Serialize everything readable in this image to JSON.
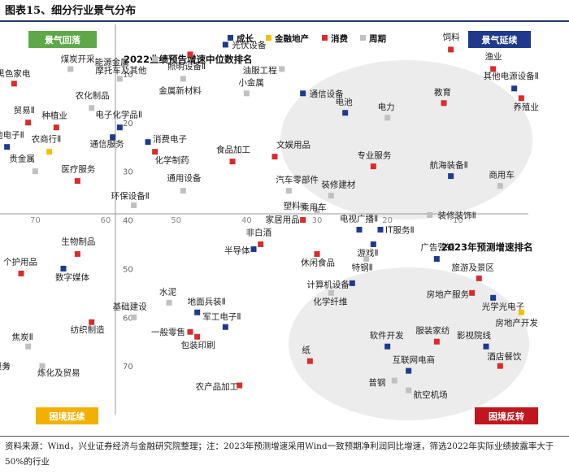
{
  "figure": {
    "title": "图表15、细分行业景气分布"
  },
  "footer": {
    "note": "资料来源：Wind，兴业证券经济与金融研究院整理；注：2023年预测增速采用Wind一致预期净利润同比增速，筛选2022年实际业绩披露率大于50%的行业"
  },
  "chart_data": {
    "type": "scatter",
    "xlabel": "2022业绩预告增速中位数排名",
    "ylabel": "2023年预测增速排名",
    "xlim": [
      75,
      0
    ],
    "ylim": [
      80,
      0
    ],
    "x_ticks": [
      70,
      60,
      50,
      40,
      30,
      20,
      10
    ],
    "y_ticks": [
      10,
      20,
      30,
      40,
      50,
      60,
      70
    ],
    "quadrant_labels": {
      "top_left": "景气回落",
      "top_right": "景气延续",
      "bottom_left": "困境延续",
      "bottom_right": "困境反转"
    },
    "colors": {
      "成长": "#1f3a8c",
      "金融地产": "#f2c200",
      "消费": "#d92b2b",
      "周期": "#c0c0c0",
      "green_box": "#5fa84a",
      "navy_box": "#1f3a8c",
      "yellow_box": "#f2b100",
      "red_box": "#c0161e"
    },
    "legend": [
      "成长",
      "金融地产",
      "消费",
      "周期"
    ],
    "points": [
      {
        "name": "黑色家电",
        "cat": "消费",
        "x": 73,
        "y": 12
      },
      {
        "name": "煤炭开采",
        "cat": "周期",
        "x": 65,
        "y": 9
      },
      {
        "name": "摩托车及其他",
        "cat": "周期",
        "x": 58,
        "y": 11
      },
      {
        "name": "能源金属",
        "cat": "周期",
        "x": 53,
        "y": 7
      },
      {
        "name": "照明设备Ⅱ",
        "cat": "消费",
        "x": 48,
        "y": 6
      },
      {
        "name": "光伏设备",
        "cat": "成长",
        "x": 43,
        "y": 4
      },
      {
        "name": "油服工程",
        "cat": "周期",
        "x": 35,
        "y": 9
      },
      {
        "name": "金属新材料",
        "cat": "周期",
        "x": 49,
        "y": 11
      },
      {
        "name": "小金属",
        "cat": "周期",
        "x": 40,
        "y": 14
      },
      {
        "name": "通信设备",
        "cat": "成长",
        "x": 32,
        "y": 14
      },
      {
        "name": "电池",
        "cat": "成长",
        "x": 26,
        "y": 18
      },
      {
        "name": "电力",
        "cat": "周期",
        "x": 20,
        "y": 19
      },
      {
        "name": "饲料",
        "cat": "消费",
        "x": 11,
        "y": 5
      },
      {
        "name": "渔业",
        "cat": "消费",
        "x": 5,
        "y": 9
      },
      {
        "name": "其他电源设备Ⅱ",
        "cat": "成长",
        "x": 2,
        "y": 13
      },
      {
        "name": "养殖业",
        "cat": "消费",
        "x": 1,
        "y": 15
      },
      {
        "name": "教育",
        "cat": "消费",
        "x": 12,
        "y": 16
      },
      {
        "name": "农化制品",
        "cat": "周期",
        "x": 62,
        "y": 17
      },
      {
        "name": "贸易Ⅱ",
        "cat": "消费",
        "x": 71,
        "y": 20
      },
      {
        "name": "种植业",
        "cat": "消费",
        "x": 67,
        "y": 21
      },
      {
        "name": "电子化学品Ⅱ",
        "cat": "成长",
        "x": 58,
        "y": 21
      },
      {
        "name": "其他电子Ⅱ",
        "cat": "成长",
        "x": 74,
        "y": 25
      },
      {
        "name": "农商行Ⅱ",
        "cat": "金融地产",
        "x": 68,
        "y": 26
      },
      {
        "name": "通信服务",
        "cat": "成长",
        "x": 59,
        "y": 23
      },
      {
        "name": "消费电子",
        "cat": "成长",
        "x": 54,
        "y": 24
      },
      {
        "name": "化学制药",
        "cat": "消费",
        "x": 53,
        "y": 26
      },
      {
        "name": "食品加工",
        "cat": "消费",
        "x": 42,
        "y": 28
      },
      {
        "name": "文娱用品",
        "cat": "消费",
        "x": 36,
        "y": 27
      },
      {
        "name": "贵金属",
        "cat": "周期",
        "x": 70,
        "y": 30
      },
      {
        "name": "医疗服务",
        "cat": "消费",
        "x": 64,
        "y": 32
      },
      {
        "name": "专业服务",
        "cat": "消费",
        "x": 22,
        "y": 29
      },
      {
        "name": "航海装备Ⅱ",
        "cat": "成长",
        "x": 11,
        "y": 31
      },
      {
        "name": "商用车",
        "cat": "周期",
        "x": 4,
        "y": 33
      },
      {
        "name": "通用设备",
        "cat": "周期",
        "x": 49,
        "y": 34
      },
      {
        "name": "环保设备Ⅱ",
        "cat": "周期",
        "x": 56,
        "y": 37
      },
      {
        "name": "汽车零部件",
        "cat": "周期",
        "x": 34,
        "y": 34
      },
      {
        "name": "装修建材",
        "cat": "周期",
        "x": 28,
        "y": 35
      },
      {
        "name": "塑料",
        "cat": "周期",
        "x": 32,
        "y": 37
      },
      {
        "name": "乘用车",
        "cat": "周期",
        "x": 30,
        "y": 38
      },
      {
        "name": "装修装饰Ⅱ",
        "cat": "周期",
        "x": 14,
        "y": 39
      },
      {
        "name": "家居用品",
        "cat": "消费",
        "x": 32,
        "y": 40
      },
      {
        "name": "电视广播Ⅱ",
        "cat": "成长",
        "x": 24,
        "y": 42
      },
      {
        "name": "IT服务Ⅱ",
        "cat": "成长",
        "x": 21,
        "y": 42
      },
      {
        "name": "非白酒",
        "cat": "消费",
        "x": 38,
        "y": 45
      },
      {
        "name": "半导体",
        "cat": "成长",
        "x": 39,
        "y": 46
      },
      {
        "name": "游戏Ⅱ",
        "cat": "成长",
        "x": 22,
        "y": 45
      },
      {
        "name": "休闲食品",
        "cat": "消费",
        "x": 30,
        "y": 47
      },
      {
        "name": "生物制品",
        "cat": "消费",
        "x": 64,
        "y": 47
      },
      {
        "name": "广告营销",
        "cat": "成长",
        "x": 13,
        "y": 48
      },
      {
        "name": "特钢Ⅱ",
        "cat": "周期",
        "x": 23,
        "y": 48
      },
      {
        "name": "个护用品",
        "cat": "消费",
        "x": 72,
        "y": 51
      },
      {
        "name": "数字媒体",
        "cat": "成长",
        "x": 66,
        "y": 50
      },
      {
        "name": "计算机设备",
        "cat": "成长",
        "x": 25,
        "y": 53
      },
      {
        "name": "旅游及景区",
        "cat": "消费",
        "x": 7,
        "y": 52
      },
      {
        "name": "房地产服务",
        "cat": "消费",
        "x": 8,
        "y": 55
      },
      {
        "name": "化学纤维",
        "cat": "周期",
        "x": 28,
        "y": 55
      },
      {
        "name": "光学光电子",
        "cat": "成长",
        "x": 5,
        "y": 56
      },
      {
        "name": "水泥",
        "cat": "周期",
        "x": 51,
        "y": 57
      },
      {
        "name": "地面兵装Ⅱ",
        "cat": "成长",
        "x": 47,
        "y": 59
      },
      {
        "name": "基础建设",
        "cat": "周期",
        "x": 56,
        "y": 60
      },
      {
        "name": "纺织制造",
        "cat": "消费",
        "x": 62,
        "y": 61
      },
      {
        "name": "房地产开发",
        "cat": "金融地产",
        "x": 1,
        "y": 59
      },
      {
        "name": "军工电子Ⅱ",
        "cat": "成长",
        "x": 43,
        "y": 62
      },
      {
        "name": "一般零售",
        "cat": "消费",
        "x": 48,
        "y": 63
      },
      {
        "name": "包装印刷",
        "cat": "消费",
        "x": 47,
        "y": 64
      },
      {
        "name": "软件开发",
        "cat": "成长",
        "x": 20,
        "y": 66
      },
      {
        "name": "服装家纺",
        "cat": "消费",
        "x": 13,
        "y": 65
      },
      {
        "name": "影视院线",
        "cat": "成长",
        "x": 6,
        "y": 66
      },
      {
        "name": "焦炭Ⅱ",
        "cat": "周期",
        "x": 71,
        "y": 66
      },
      {
        "name": "汽车服务",
        "cat": "周期",
        "x": 74,
        "y": 70
      },
      {
        "name": "炼化及贸易",
        "cat": "周期",
        "x": 69,
        "y": 70
      },
      {
        "name": "纸",
        "cat": "消费",
        "x": 31,
        "y": 69
      },
      {
        "name": "酒店餐饮",
        "cat": "消费",
        "x": 4,
        "y": 70
      },
      {
        "name": "互联网电商",
        "cat": "成长",
        "x": 17,
        "y": 71
      },
      {
        "name": "农产品加工",
        "cat": "消费",
        "x": 41,
        "y": 74
      },
      {
        "name": "普钢",
        "cat": "周期",
        "x": 19,
        "y": 73
      },
      {
        "name": "航空机场",
        "cat": "周期",
        "x": 17,
        "y": 75
      }
    ]
  }
}
